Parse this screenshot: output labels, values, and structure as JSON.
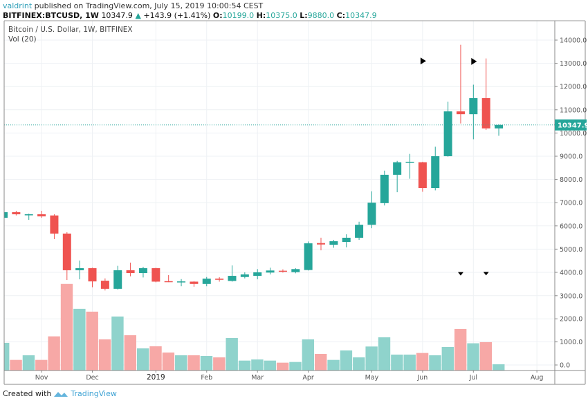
{
  "header": {
    "author": "valdrint",
    "published": "published on TradingView.com, July 15, 2019 10:00:54 CEST",
    "symbol": "BITFINEX:BTCUSD, 1W",
    "last": "10347.9",
    "change": "+143.9 (+1.41%)",
    "o_label": "O:",
    "o": "10199.0",
    "h_label": "H:",
    "h": "10375.0",
    "l_label": "L:",
    "l": "9880.0",
    "c_label": "C:",
    "c": "10347.9"
  },
  "legend": {
    "title": "Bitcoin / U.S. Dollar, 1W, BITFINEX",
    "volume": "Vol (20)"
  },
  "footer": {
    "created": "Created with",
    "brand": "TradingView"
  },
  "colors": {
    "up": "#26a69a",
    "down": "#ef5350",
    "vol_up": "#8fd3cc",
    "vol_down": "#f7a8a6",
    "price_line": "#26a69a"
  },
  "chart_data": {
    "type": "candlestick",
    "interval": "1W",
    "dates": [
      "2018-10-15",
      "2018-10-22",
      "2018-10-29",
      "2018-11-05",
      "2018-11-12",
      "2018-11-19",
      "2018-11-26",
      "2018-12-03",
      "2018-12-10",
      "2018-12-17",
      "2018-12-24",
      "2018-12-31",
      "2019-01-07",
      "2019-01-14",
      "2019-01-21",
      "2019-01-28",
      "2019-02-04",
      "2019-02-11",
      "2019-02-18",
      "2019-02-25",
      "2019-03-04",
      "2019-03-11",
      "2019-03-18",
      "2019-03-25",
      "2019-04-01",
      "2019-04-08",
      "2019-04-15",
      "2019-04-22",
      "2019-04-29",
      "2019-05-06",
      "2019-05-13",
      "2019-05-20",
      "2019-05-27",
      "2019-06-03",
      "2019-06-10",
      "2019-06-17",
      "2019-06-24",
      "2019-07-01",
      "2019-07-08",
      "2019-07-15"
    ],
    "ohlc": [
      [
        6350,
        6620,
        6300,
        6590
      ],
      [
        6590,
        6650,
        6450,
        6500
      ],
      [
        6480,
        6530,
        6260,
        6500
      ],
      [
        6500,
        6650,
        6350,
        6410
      ],
      [
        6450,
        6500,
        5430,
        5670
      ],
      [
        5670,
        5730,
        3670,
        4090
      ],
      [
        4090,
        4510,
        3700,
        4180
      ],
      [
        4180,
        4200,
        3360,
        3610
      ],
      [
        3640,
        3740,
        3220,
        3290
      ],
      [
        3290,
        4280,
        3260,
        4090
      ],
      [
        4090,
        4420,
        3830,
        3970
      ],
      [
        3970,
        4240,
        3780,
        4180
      ],
      [
        4180,
        4200,
        3570,
        3600
      ],
      [
        3620,
        3880,
        3580,
        3600
      ],
      [
        3590,
        3710,
        3400,
        3610
      ],
      [
        3600,
        3620,
        3380,
        3500
      ],
      [
        3500,
        3800,
        3400,
        3730
      ],
      [
        3730,
        3790,
        3600,
        3680
      ],
      [
        3630,
        4300,
        3600,
        3850
      ],
      [
        3800,
        4000,
        3740,
        3910
      ],
      [
        3850,
        4140,
        3700,
        4000
      ],
      [
        3990,
        4200,
        3910,
        4080
      ],
      [
        4070,
        4130,
        3990,
        4040
      ],
      [
        4010,
        4180,
        3960,
        4140
      ],
      [
        4100,
        5330,
        4080,
        5250
      ],
      [
        5260,
        5490,
        4950,
        5200
      ],
      [
        5190,
        5400,
        5060,
        5340
      ],
      [
        5310,
        5640,
        5080,
        5490
      ],
      [
        5490,
        6180,
        5400,
        6050
      ],
      [
        6050,
        7490,
        5900,
        7000
      ],
      [
        6980,
        8380,
        6880,
        8200
      ],
      [
        8200,
        8800,
        7450,
        8740
      ],
      [
        8740,
        9100,
        8030,
        8760
      ],
      [
        8740,
        8760,
        7470,
        7630
      ],
      [
        7630,
        9410,
        7530,
        9000
      ],
      [
        9000,
        11350,
        8980,
        10930
      ],
      [
        10930,
        13800,
        10410,
        10810
      ],
      [
        10810,
        12080,
        9730,
        11500
      ],
      [
        11500,
        13210,
        10130,
        10199
      ],
      [
        10199,
        10375,
        9880,
        10347.9
      ]
    ],
    "volume": [
      960,
      220,
      420,
      220,
      1240,
      3510,
      2430,
      2310,
      1110,
      2100,
      1290,
      720,
      810,
      540,
      420,
      420,
      390,
      330,
      1170,
      190,
      240,
      190,
      100,
      130,
      1110,
      480,
      220,
      630,
      330,
      800,
      1200,
      450,
      450,
      520,
      420,
      780,
      1560,
      940,
      990,
      30
    ],
    "current_price": "10347.9",
    "current_price_value": 10347.9,
    "price_range": [
      3000,
      14000
    ],
    "price_ticks": [
      "14000.0",
      "13000.0",
      "12000.0",
      "11000.0",
      "10000.0",
      "9000.0",
      "8000.0",
      "7000.0",
      "6000.0",
      "5000.0",
      "4000.0"
    ],
    "volume_ticks": [
      "3000.0",
      "2000.0",
      "1000.0",
      "0.0"
    ],
    "x_ticks": [
      {
        "label": "Nov",
        "date": "2018-11-05"
      },
      {
        "label": "Dec",
        "date": "2018-12-03"
      },
      {
        "label": "2019",
        "date": "2019-01-07"
      },
      {
        "label": "Feb",
        "date": "2019-02-04"
      },
      {
        "label": "Mar",
        "date": "2019-03-04"
      },
      {
        "label": "Apr",
        "date": "2019-04-01"
      },
      {
        "label": "May",
        "date": "2019-05-06"
      },
      {
        "label": "Jun",
        "date": "2019-06-03"
      },
      {
        "label": "Jul",
        "date": "2019-07-01"
      },
      {
        "label": "Aug",
        "date": "2019-08-05"
      }
    ],
    "markers": [
      {
        "shape": "triangle-right",
        "date": "2019-06-03",
        "price": 13100
      },
      {
        "shape": "triangle-right",
        "date": "2019-07-01",
        "price": 13080
      },
      {
        "shape": "triangle-down",
        "date": "2019-06-24",
        "price": 3950
      },
      {
        "shape": "triangle-down",
        "date": "2019-07-08",
        "price": 3960
      }
    ],
    "grid": true
  }
}
